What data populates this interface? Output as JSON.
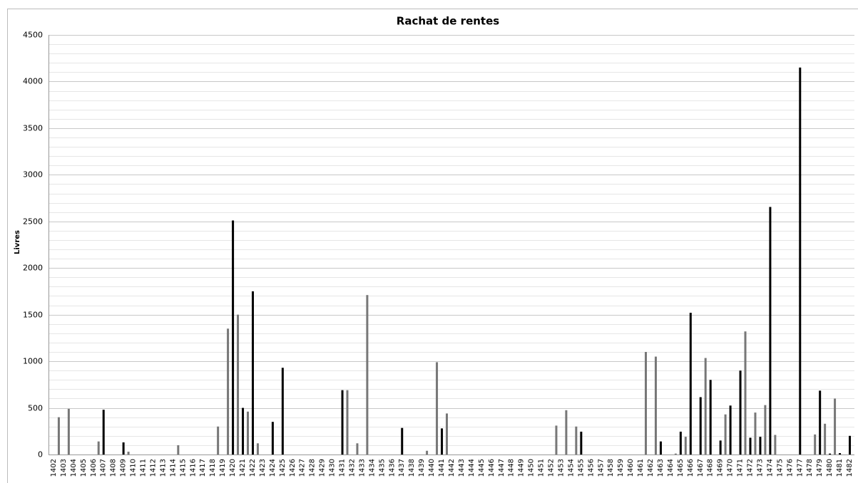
{
  "chart_data": {
    "type": "bar",
    "title": "Rachat de rentes",
    "y_label": "Livres",
    "categories": [
      "1402",
      "1403",
      "1404",
      "1405",
      "1406",
      "1407",
      "1408",
      "1409",
      "1410",
      "1411",
      "1412",
      "1413",
      "1414",
      "1415",
      "1416",
      "1417",
      "1418",
      "1419",
      "1420",
      "1421",
      "1422",
      "1423",
      "1424",
      "1425",
      "1426",
      "1427",
      "1428",
      "1429",
      "1430",
      "1431",
      "1432",
      "1433",
      "1434",
      "1435",
      "1436",
      "1437",
      "1438",
      "1439",
      "1440",
      "1441",
      "1442",
      "1443",
      "1444",
      "1445",
      "1446",
      "1447",
      "1448",
      "1449",
      "1450",
      "1451",
      "1452",
      "1453",
      "1454",
      "1455",
      "1456",
      "1457",
      "1458",
      "1459",
      "1460",
      "1461",
      "1462",
      "1463",
      "1464",
      "1465",
      "1466",
      "1467",
      "1468",
      "1469",
      "1470",
      "1471",
      "1472",
      "1473",
      "1474",
      "1475",
      "1476",
      "1477",
      "1478",
      "1479",
      "1480",
      "1481",
      "1482"
    ],
    "series": [
      {
        "color": "#777777",
        "values": [
          0,
          400,
          490,
          0,
          0,
          140,
          0,
          0,
          30,
          0,
          0,
          0,
          0,
          100,
          0,
          0,
          0,
          300,
          1350,
          1500,
          460,
          120,
          0,
          0,
          0,
          0,
          0,
          0,
          0,
          0,
          690,
          120,
          1710,
          0,
          0,
          0,
          0,
          0,
          40,
          990,
          440,
          0,
          0,
          0,
          0,
          0,
          0,
          0,
          0,
          0,
          0,
          310,
          475,
          300,
          0,
          0,
          0,
          0,
          0,
          0,
          1100,
          1050,
          0,
          10,
          190,
          0,
          1035,
          0,
          430,
          0,
          1320,
          450,
          530,
          210,
          0,
          0,
          0,
          215,
          330,
          600,
          0
        ]
      },
      {
        "color": "#000000",
        "values": [
          0,
          0,
          0,
          0,
          0,
          480,
          0,
          130,
          0,
          0,
          0,
          0,
          0,
          0,
          0,
          0,
          0,
          0,
          2510,
          500,
          1750,
          0,
          350,
          930,
          0,
          0,
          0,
          0,
          0,
          690,
          0,
          0,
          0,
          0,
          0,
          285,
          0,
          0,
          0,
          280,
          0,
          0,
          0,
          0,
          0,
          0,
          0,
          0,
          0,
          0,
          0,
          0,
          0,
          245,
          0,
          0,
          0,
          0,
          0,
          0,
          0,
          140,
          0,
          245,
          1520,
          615,
          800,
          150,
          525,
          900,
          180,
          190,
          2655,
          0,
          0,
          4150,
          0,
          685,
          10,
          15,
          200
        ]
      }
    ],
    "ylim": [
      0,
      4500
    ],
    "yticks": [
      0,
      500,
      1000,
      1500,
      2000,
      2500,
      3000,
      3500,
      4000,
      4500
    ],
    "grid": true,
    "minor_grid_step": 100
  }
}
